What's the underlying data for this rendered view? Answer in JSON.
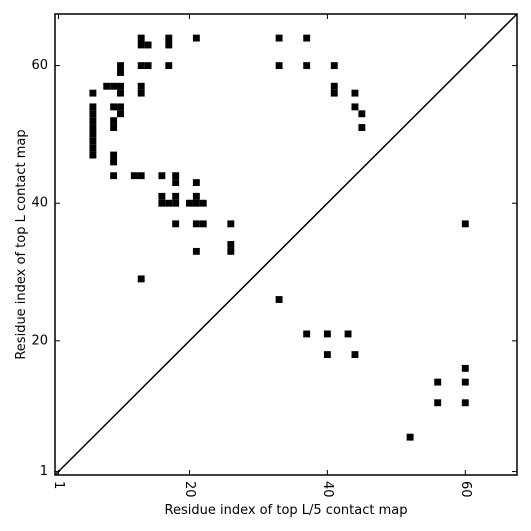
{
  "chart_data": {
    "type": "heatmap",
    "title": "",
    "xlabel": "Residue index of top L/5 contact map",
    "ylabel": "Residue index of top L contact map",
    "xlim": [
      0.5,
      67.5
    ],
    "ylim": [
      0.5,
      67.5
    ],
    "xticks": [
      1,
      20,
      40,
      60
    ],
    "yticks": [
      1,
      20,
      40,
      60
    ],
    "x_tick_label_rotation": 90,
    "cell_color": "#000000",
    "background_color": "#ffffff",
    "diagonal_line": true,
    "upper_triangle_top_L": [
      [
        13,
        64
      ],
      [
        14,
        63
      ],
      [
        13,
        63
      ],
      [
        17,
        64
      ],
      [
        17,
        63
      ],
      [
        21,
        64
      ],
      [
        33,
        64
      ],
      [
        37,
        64
      ],
      [
        10,
        60
      ],
      [
        10,
        59
      ],
      [
        13,
        60
      ],
      [
        14,
        60
      ],
      [
        17,
        60
      ],
      [
        33,
        60
      ],
      [
        37,
        60
      ],
      [
        41,
        60
      ],
      [
        8,
        57
      ],
      [
        9,
        57
      ],
      [
        10,
        57
      ],
      [
        10,
        56
      ],
      [
        13,
        57
      ],
      [
        13,
        56
      ],
      [
        6,
        56
      ],
      [
        41,
        57
      ],
      [
        41,
        56
      ],
      [
        44,
        56
      ],
      [
        6,
        54
      ],
      [
        6,
        53
      ],
      [
        6,
        52
      ],
      [
        6,
        51
      ],
      [
        6,
        50
      ],
      [
        6,
        49
      ],
      [
        6,
        48
      ],
      [
        6,
        47
      ],
      [
        9,
        54
      ],
      [
        10,
        54
      ],
      [
        10,
        53
      ],
      [
        9,
        52
      ],
      [
        9,
        51
      ],
      [
        44,
        54
      ],
      [
        45,
        53
      ],
      [
        45,
        51
      ],
      [
        9,
        47
      ],
      [
        9,
        46
      ],
      [
        9,
        44
      ],
      [
        12,
        44
      ],
      [
        13,
        44
      ],
      [
        16,
        44
      ],
      [
        18,
        44
      ],
      [
        18,
        43
      ],
      [
        21,
        43
      ],
      [
        16,
        41
      ],
      [
        16,
        40
      ],
      [
        17,
        40
      ],
      [
        18,
        40
      ],
      [
        18,
        41
      ],
      [
        20,
        40
      ],
      [
        21,
        40
      ],
      [
        21,
        41
      ],
      [
        22,
        40
      ],
      [
        18,
        37
      ],
      [
        21,
        37
      ],
      [
        22,
        37
      ],
      [
        26,
        37
      ],
      [
        26,
        34
      ],
      [
        26,
        33
      ],
      [
        21,
        33
      ],
      [
        13,
        29
      ]
    ],
    "lower_triangle_top_L5": [
      [
        60,
        37
      ],
      [
        33,
        26
      ],
      [
        37,
        21
      ],
      [
        40,
        21
      ],
      [
        43,
        21
      ],
      [
        40,
        18
      ],
      [
        44,
        18
      ],
      [
        60,
        16
      ],
      [
        56,
        14
      ],
      [
        60,
        14
      ],
      [
        56,
        11
      ],
      [
        60,
        11
      ],
      [
        52,
        6
      ]
    ]
  }
}
